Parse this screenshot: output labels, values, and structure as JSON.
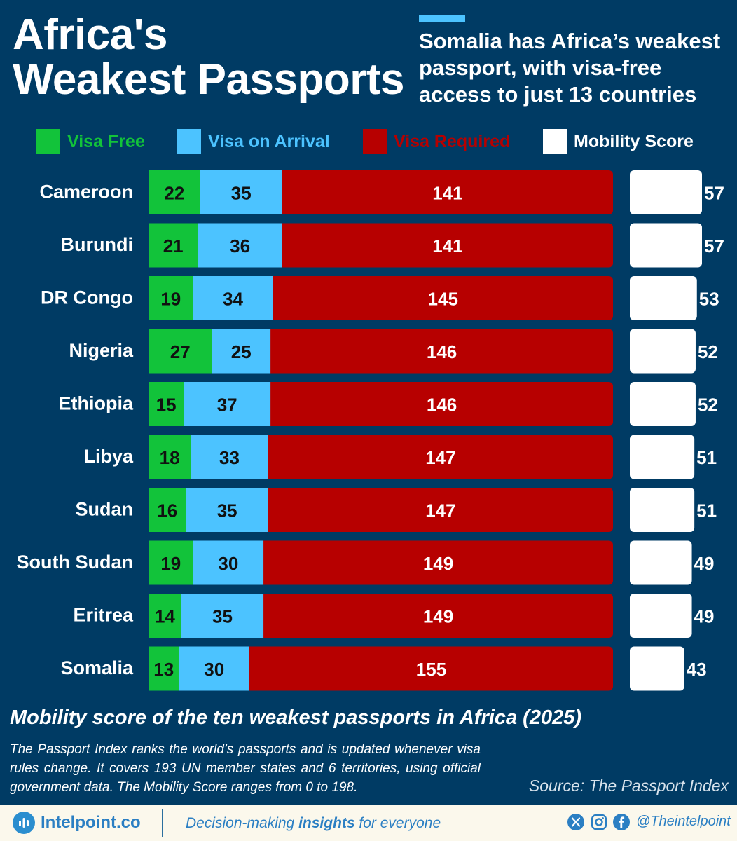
{
  "header": {
    "title_line1": "Africa's",
    "title_line2": "Weakest Passports",
    "subtitle": "Somalia has Africa’s weakest passport, with visa-free access to just 13 countries"
  },
  "legend": {
    "visa_free": "Visa Free",
    "visa_on_arrival": "Visa on Arrival",
    "visa_required": "Visa Required",
    "mobility_score": "Mobility Score"
  },
  "colors": {
    "background": "#003b64",
    "visa_free": "#12c33a",
    "visa_on_arrival": "#4cc3ff",
    "visa_required": "#b70000",
    "mobility_score": "#ffffff"
  },
  "chart_data": {
    "type": "bar",
    "orientation": "horizontal-stacked",
    "categories": [
      "Cameroon",
      "Burundi",
      "DR Congo",
      "Nigeria",
      "Ethiopia",
      "Libya",
      "Sudan",
      "South Sudan",
      "Eritrea",
      "Somalia"
    ],
    "series": [
      {
        "name": "Visa Free",
        "values": [
          22,
          21,
          19,
          27,
          15,
          18,
          16,
          19,
          14,
          13
        ]
      },
      {
        "name": "Visa on Arrival",
        "values": [
          35,
          36,
          34,
          25,
          37,
          33,
          35,
          30,
          35,
          30
        ]
      },
      {
        "name": "Visa Required",
        "values": [
          141,
          141,
          145,
          146,
          146,
          147,
          147,
          149,
          149,
          155
        ]
      },
      {
        "name": "Mobility Score",
        "values": [
          57,
          57,
          53,
          52,
          52,
          51,
          51,
          49,
          49,
          43
        ]
      }
    ],
    "stack_total": 198,
    "legend_position": "top"
  },
  "footer": {
    "chart_title": "Mobility score of the ten weakest passports in Africa (2025)",
    "note": "The Passport Index ranks the world’s passports and is updated whenever visa rules change. It covers 193 UN member states and 6 territories, using official government data. The Mobility Score ranges from 0 to 198.",
    "source": "Source: The Passport Index"
  },
  "branding": {
    "name": "Intelpoint.co",
    "tagline_pre": "Decision-making ",
    "tagline_bold": "insights",
    "tagline_post": " for everyone",
    "handle": "@Theintelpoint",
    "icons": [
      "x-icon",
      "instagram-icon",
      "facebook-icon"
    ]
  }
}
